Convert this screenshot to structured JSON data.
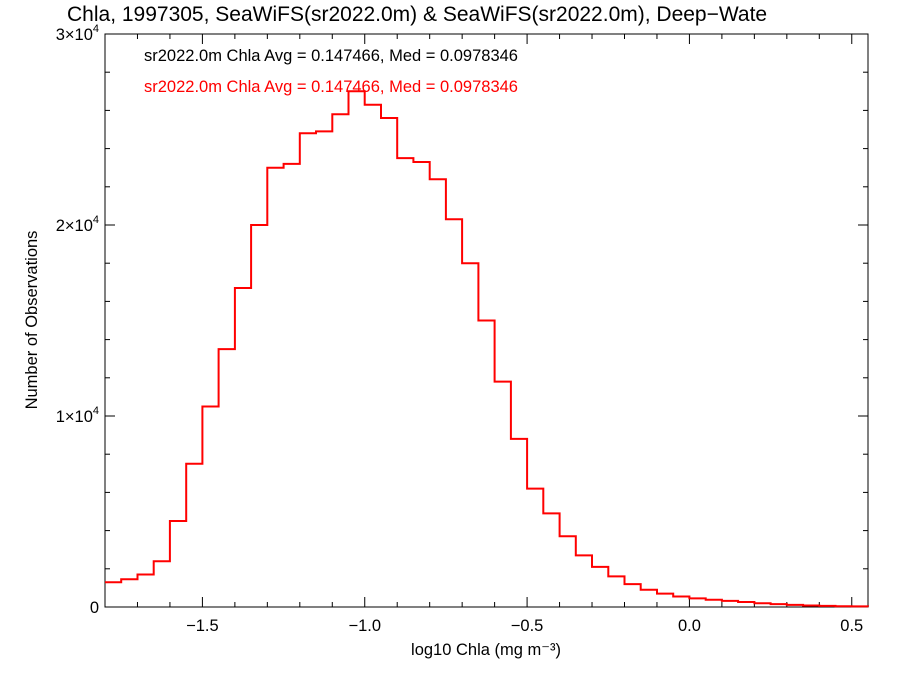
{
  "chart_data": {
    "type": "line",
    "title": "Chla, 1997305, SeaWiFS(sr2022.0m) & SeaWiFS(sr2022.0m), Deep−Wate",
    "xlabel": "log10 Chla (mg m⁻³)",
    "ylabel": "Number of Observations",
    "xlim": [
      -1.8,
      0.55
    ],
    "ylim": [
      0,
      30000
    ],
    "x_ticks": [
      {
        "value": -1.5,
        "label": "−1.5"
      },
      {
        "value": -1.0,
        "label": "−1.0"
      },
      {
        "value": -0.5,
        "label": "−0.5"
      },
      {
        "value": 0.0,
        "label": "0.0"
      },
      {
        "value": 0.5,
        "label": "0.5"
      }
    ],
    "y_ticks": [
      {
        "value": 0,
        "base": "0",
        "exp": ""
      },
      {
        "value": 10000,
        "base": "1×10",
        "exp": "4"
      },
      {
        "value": 20000,
        "base": "2×10",
        "exp": "4"
      },
      {
        "value": 30000,
        "base": "3×10",
        "exp": "4"
      }
    ],
    "annotations": [
      {
        "text": "sr2022.0m Chla Avg = 0.147466, Med = 0.0978346",
        "color": "#000000"
      },
      {
        "text": "sr2022.0m Chla Avg = 0.147466, Med = 0.0978346",
        "color": "#ff0000"
      }
    ],
    "series": [
      {
        "color": "#ff0000",
        "style": "step",
        "x": [
          -1.8,
          -1.75,
          -1.7,
          -1.65,
          -1.6,
          -1.55,
          -1.5,
          -1.45,
          -1.4,
          -1.35,
          -1.3,
          -1.25,
          -1.2,
          -1.15,
          -1.1,
          -1.05,
          -1.0,
          -0.95,
          -0.9,
          -0.85,
          -0.8,
          -0.75,
          -0.7,
          -0.65,
          -0.6,
          -0.55,
          -0.5,
          -0.45,
          -0.4,
          -0.35,
          -0.3,
          -0.25,
          -0.2,
          -0.15,
          -0.1,
          -0.05,
          0.0,
          0.05,
          0.1,
          0.15,
          0.2,
          0.25,
          0.3,
          0.35,
          0.4,
          0.45,
          0.5,
          0.55
        ],
        "y": [
          1300,
          1450,
          1700,
          2400,
          4500,
          7500,
          10500,
          13500,
          16700,
          20000,
          23000,
          23200,
          24800,
          24900,
          25800,
          27000,
          26300,
          25600,
          23500,
          23300,
          22400,
          20300,
          18000,
          15000,
          11800,
          8800,
          6200,
          4900,
          3700,
          2700,
          2100,
          1600,
          1200,
          900,
          700,
          550,
          450,
          380,
          320,
          260,
          200,
          150,
          110,
          80,
          60,
          40,
          30,
          20
        ]
      }
    ]
  }
}
